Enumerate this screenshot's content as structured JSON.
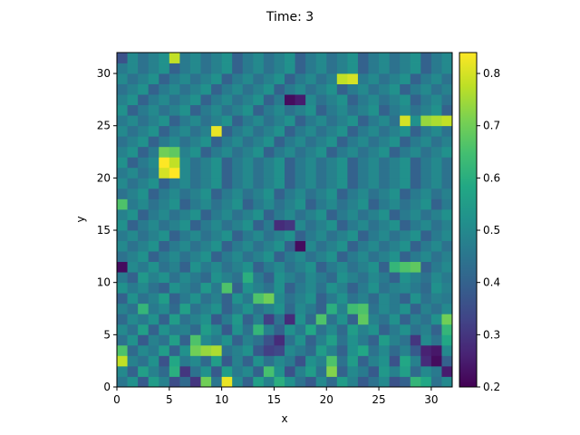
{
  "chart_data": {
    "type": "heatmap",
    "title": "Time: 3",
    "xlabel": "x",
    "ylabel": "y",
    "xlim": [
      0,
      32
    ],
    "ylim": [
      0,
      32
    ],
    "xticks": [
      0,
      5,
      10,
      15,
      20,
      25,
      30
    ],
    "yticks": [
      0,
      5,
      10,
      15,
      20,
      25,
      30
    ],
    "colormap": "viridis",
    "colorbar": {
      "min": 0.2,
      "max": 0.84,
      "ticks": [
        0.2,
        0.3,
        0.4,
        0.5,
        0.6,
        0.7,
        0.8
      ],
      "tick_labels": [
        "0.2",
        "0.3",
        "0.4",
        "0.5",
        "0.6",
        "0.7",
        "0.8"
      ],
      "position": "right"
    },
    "grid": false,
    "rows": 32,
    "cols": 32,
    "values_note_order": "rows listed from y=0 (bottom) to y=31 (top)",
    "values": [
      [
        0.45,
        0.52,
        0.38,
        0.55,
        0.48,
        0.35,
        0.42,
        0.3,
        0.7,
        0.45,
        0.82,
        0.5,
        0.4,
        0.56,
        0.48,
        0.6,
        0.52,
        0.44,
        0.38,
        0.5,
        0.42,
        0.55,
        0.48,
        0.38,
        0.44,
        0.5,
        0.36,
        0.4,
        0.62,
        0.58,
        0.44,
        0.5
      ],
      [
        0.5,
        0.4,
        0.56,
        0.48,
        0.42,
        0.6,
        0.3,
        0.44,
        0.52,
        0.38,
        0.55,
        0.46,
        0.5,
        0.4,
        0.65,
        0.52,
        0.36,
        0.48,
        0.55,
        0.44,
        0.72,
        0.4,
        0.5,
        0.46,
        0.38,
        0.54,
        0.48,
        0.56,
        0.42,
        0.5,
        0.46,
        0.25
      ],
      [
        0.78,
        0.48,
        0.44,
        0.52,
        0.36,
        0.58,
        0.46,
        0.5,
        0.42,
        0.55,
        0.38,
        0.48,
        0.4,
        0.52,
        0.44,
        0.5,
        0.46,
        0.36,
        0.52,
        0.48,
        0.66,
        0.44,
        0.55,
        0.4,
        0.48,
        0.52,
        0.36,
        0.58,
        0.48,
        0.28,
        0.22,
        0.4
      ],
      [
        0.66,
        0.42,
        0.5,
        0.46,
        0.55,
        0.4,
        0.52,
        0.7,
        0.74,
        0.76,
        0.44,
        0.48,
        0.52,
        0.38,
        0.32,
        0.34,
        0.5,
        0.46,
        0.42,
        0.55,
        0.48,
        0.4,
        0.52,
        0.58,
        0.44,
        0.5,
        0.42,
        0.48,
        0.38,
        0.26,
        0.24,
        0.5
      ],
      [
        0.44,
        0.52,
        0.38,
        0.48,
        0.44,
        0.56,
        0.4,
        0.66,
        0.5,
        0.46,
        0.52,
        0.4,
        0.48,
        0.44,
        0.36,
        0.28,
        0.44,
        0.52,
        0.4,
        0.48,
        0.56,
        0.44,
        0.52,
        0.46,
        0.4,
        0.55,
        0.48,
        0.44,
        0.3,
        0.5,
        0.44,
        0.58
      ],
      [
        0.5,
        0.44,
        0.56,
        0.4,
        0.52,
        0.46,
        0.48,
        0.42,
        0.55,
        0.5,
        0.38,
        0.52,
        0.44,
        0.62,
        0.48,
        0.4,
        0.52,
        0.46,
        0.58,
        0.44,
        0.5,
        0.42,
        0.55,
        0.48,
        0.52,
        0.4,
        0.46,
        0.52,
        0.44,
        0.48,
        0.4,
        0.62
      ],
      [
        0.42,
        0.5,
        0.46,
        0.52,
        0.4,
        0.55,
        0.44,
        0.48,
        0.52,
        0.38,
        0.46,
        0.54,
        0.4,
        0.48,
        0.32,
        0.44,
        0.28,
        0.52,
        0.42,
        0.66,
        0.44,
        0.52,
        0.4,
        0.68,
        0.48,
        0.44,
        0.52,
        0.4,
        0.48,
        0.44,
        0.52,
        0.7
      ],
      [
        0.48,
        0.44,
        0.62,
        0.46,
        0.5,
        0.42,
        0.56,
        0.44,
        0.48,
        0.52,
        0.4,
        0.46,
        0.52,
        0.44,
        0.48,
        0.52,
        0.42,
        0.5,
        0.46,
        0.4,
        0.6,
        0.48,
        0.64,
        0.66,
        0.44,
        0.5,
        0.46,
        0.52,
        0.4,
        0.48,
        0.44,
        0.5
      ],
      [
        0.4,
        0.52,
        0.44,
        0.48,
        0.55,
        0.4,
        0.46,
        0.52,
        0.44,
        0.48,
        0.4,
        0.52,
        0.46,
        0.66,
        0.7,
        0.5,
        0.44,
        0.48,
        0.52,
        0.4,
        0.46,
        0.52,
        0.44,
        0.48,
        0.42,
        0.5,
        0.46,
        0.4,
        0.52,
        0.44,
        0.48,
        0.46
      ],
      [
        0.52,
        0.46,
        0.5,
        0.44,
        0.4,
        0.52,
        0.48,
        0.44,
        0.54,
        0.46,
        0.66,
        0.4,
        0.52,
        0.48,
        0.44,
        0.52,
        0.4,
        0.46,
        0.5,
        0.44,
        0.52,
        0.48,
        0.4,
        0.46,
        0.52,
        0.44,
        0.48,
        0.5,
        0.46,
        0.42,
        0.52,
        0.48
      ],
      [
        0.46,
        0.4,
        0.54,
        0.48,
        0.52,
        0.44,
        0.5,
        0.46,
        0.42,
        0.52,
        0.48,
        0.44,
        0.6,
        0.46,
        0.4,
        0.52,
        0.48,
        0.44,
        0.5,
        0.46,
        0.42,
        0.52,
        0.48,
        0.44,
        0.5,
        0.46,
        0.4,
        0.52,
        0.48,
        0.44,
        0.5,
        0.46
      ],
      [
        0.22,
        0.5,
        0.46,
        0.52,
        0.44,
        0.48,
        0.4,
        0.52,
        0.46,
        0.5,
        0.44,
        0.48,
        0.52,
        0.4,
        0.46,
        0.5,
        0.44,
        0.48,
        0.52,
        0.4,
        0.46,
        0.5,
        0.44,
        0.48,
        0.52,
        0.4,
        0.62,
        0.66,
        0.68,
        0.4,
        0.46,
        0.5
      ],
      [
        0.44,
        0.48,
        0.52,
        0.4,
        0.46,
        0.5,
        0.44,
        0.48,
        0.52,
        0.4,
        0.46,
        0.5,
        0.44,
        0.48,
        0.52,
        0.4,
        0.46,
        0.5,
        0.44,
        0.48,
        0.52,
        0.4,
        0.46,
        0.5,
        0.44,
        0.48,
        0.52,
        0.4,
        0.46,
        0.5,
        0.44,
        0.48
      ],
      [
        0.5,
        0.44,
        0.48,
        0.52,
        0.4,
        0.46,
        0.5,
        0.44,
        0.48,
        0.52,
        0.4,
        0.46,
        0.5,
        0.44,
        0.48,
        0.52,
        0.4,
        0.22,
        0.5,
        0.44,
        0.48,
        0.52,
        0.4,
        0.46,
        0.5,
        0.44,
        0.48,
        0.52,
        0.4,
        0.46,
        0.5,
        0.44
      ],
      [
        0.46,
        0.5,
        0.44,
        0.48,
        0.52,
        0.4,
        0.46,
        0.5,
        0.44,
        0.48,
        0.52,
        0.4,
        0.46,
        0.5,
        0.44,
        0.48,
        0.52,
        0.4,
        0.46,
        0.5,
        0.44,
        0.48,
        0.52,
        0.4,
        0.46,
        0.5,
        0.44,
        0.48,
        0.52,
        0.4,
        0.46,
        0.5
      ],
      [
        0.52,
        0.4,
        0.46,
        0.5,
        0.44,
        0.48,
        0.52,
        0.4,
        0.46,
        0.5,
        0.44,
        0.48,
        0.52,
        0.4,
        0.46,
        0.28,
        0.3,
        0.5,
        0.44,
        0.48,
        0.52,
        0.4,
        0.46,
        0.5,
        0.44,
        0.48,
        0.52,
        0.4,
        0.46,
        0.5,
        0.44,
        0.48
      ],
      [
        0.48,
        0.52,
        0.4,
        0.46,
        0.5,
        0.44,
        0.48,
        0.52,
        0.4,
        0.46,
        0.5,
        0.44,
        0.48,
        0.52,
        0.4,
        0.46,
        0.5,
        0.44,
        0.48,
        0.52,
        0.4,
        0.46,
        0.5,
        0.44,
        0.48,
        0.52,
        0.4,
        0.46,
        0.5,
        0.44,
        0.48,
        0.52
      ],
      [
        0.66,
        0.46,
        0.5,
        0.44,
        0.48,
        0.52,
        0.4,
        0.46,
        0.5,
        0.44,
        0.48,
        0.52,
        0.4,
        0.46,
        0.5,
        0.44,
        0.48,
        0.52,
        0.4,
        0.46,
        0.5,
        0.44,
        0.48,
        0.52,
        0.4,
        0.46,
        0.5,
        0.44,
        0.48,
        0.52,
        0.4,
        0.46
      ],
      [
        0.44,
        0.48,
        0.52,
        0.4,
        0.46,
        0.5,
        0.44,
        0.48,
        0.52,
        0.4,
        0.46,
        0.5,
        0.44,
        0.48,
        0.52,
        0.4,
        0.46,
        0.5,
        0.44,
        0.48,
        0.52,
        0.4,
        0.46,
        0.5,
        0.44,
        0.48,
        0.52,
        0.4,
        0.46,
        0.5,
        0.44,
        0.48
      ],
      [
        0.5,
        0.44,
        0.48,
        0.52,
        0.4,
        0.46,
        0.5,
        0.44,
        0.48,
        0.52,
        0.4,
        0.46,
        0.5,
        0.44,
        0.48,
        0.52,
        0.4,
        0.46,
        0.5,
        0.44,
        0.48,
        0.52,
        0.4,
        0.46,
        0.5,
        0.44,
        0.48,
        0.52,
        0.4,
        0.46,
        0.5,
        0.44
      ],
      [
        0.46,
        0.5,
        0.44,
        0.48,
        0.8,
        0.84,
        0.5,
        0.44,
        0.48,
        0.52,
        0.4,
        0.46,
        0.5,
        0.44,
        0.48,
        0.52,
        0.4,
        0.46,
        0.5,
        0.44,
        0.48,
        0.52,
        0.4,
        0.46,
        0.5,
        0.44,
        0.48,
        0.52,
        0.4,
        0.46,
        0.5,
        0.44
      ],
      [
        0.52,
        0.4,
        0.46,
        0.5,
        0.84,
        0.78,
        0.5,
        0.44,
        0.48,
        0.52,
        0.4,
        0.46,
        0.5,
        0.44,
        0.48,
        0.52,
        0.4,
        0.46,
        0.5,
        0.44,
        0.48,
        0.52,
        0.4,
        0.46,
        0.5,
        0.44,
        0.48,
        0.52,
        0.4,
        0.46,
        0.5,
        0.44
      ],
      [
        0.48,
        0.52,
        0.4,
        0.46,
        0.7,
        0.68,
        0.48,
        0.52,
        0.4,
        0.46,
        0.5,
        0.44,
        0.48,
        0.52,
        0.4,
        0.46,
        0.5,
        0.44,
        0.48,
        0.52,
        0.4,
        0.46,
        0.5,
        0.44,
        0.48,
        0.52,
        0.4,
        0.46,
        0.5,
        0.44,
        0.48,
        0.52
      ],
      [
        0.44,
        0.48,
        0.52,
        0.4,
        0.46,
        0.5,
        0.44,
        0.48,
        0.52,
        0.4,
        0.46,
        0.5,
        0.44,
        0.48,
        0.52,
        0.4,
        0.46,
        0.5,
        0.44,
        0.48,
        0.52,
        0.4,
        0.46,
        0.5,
        0.44,
        0.48,
        0.52,
        0.4,
        0.46,
        0.5,
        0.44,
        0.48
      ],
      [
        0.5,
        0.44,
        0.48,
        0.52,
        0.4,
        0.46,
        0.5,
        0.44,
        0.48,
        0.82,
        0.4,
        0.46,
        0.5,
        0.44,
        0.48,
        0.52,
        0.4,
        0.46,
        0.5,
        0.44,
        0.48,
        0.52,
        0.4,
        0.46,
        0.5,
        0.44,
        0.48,
        0.52,
        0.4,
        0.46,
        0.5,
        0.44
      ],
      [
        0.46,
        0.5,
        0.44,
        0.48,
        0.52,
        0.4,
        0.46,
        0.5,
        0.44,
        0.48,
        0.52,
        0.4,
        0.46,
        0.5,
        0.44,
        0.48,
        0.52,
        0.4,
        0.46,
        0.5,
        0.44,
        0.48,
        0.52,
        0.4,
        0.46,
        0.5,
        0.44,
        0.8,
        0.52,
        0.74,
        0.76,
        0.78
      ],
      [
        0.52,
        0.4,
        0.46,
        0.5,
        0.44,
        0.48,
        0.52,
        0.4,
        0.46,
        0.5,
        0.44,
        0.48,
        0.52,
        0.4,
        0.46,
        0.5,
        0.44,
        0.48,
        0.52,
        0.4,
        0.46,
        0.5,
        0.44,
        0.48,
        0.52,
        0.4,
        0.46,
        0.5,
        0.44,
        0.48,
        0.52,
        0.4
      ],
      [
        0.48,
        0.52,
        0.4,
        0.46,
        0.5,
        0.44,
        0.48,
        0.52,
        0.4,
        0.46,
        0.5,
        0.44,
        0.48,
        0.52,
        0.4,
        0.46,
        0.22,
        0.25,
        0.5,
        0.44,
        0.48,
        0.52,
        0.4,
        0.46,
        0.5,
        0.44,
        0.48,
        0.52,
        0.4,
        0.46,
        0.5,
        0.44
      ],
      [
        0.44,
        0.48,
        0.52,
        0.4,
        0.46,
        0.5,
        0.44,
        0.48,
        0.52,
        0.4,
        0.46,
        0.5,
        0.44,
        0.48,
        0.52,
        0.4,
        0.46,
        0.5,
        0.44,
        0.48,
        0.52,
        0.4,
        0.46,
        0.5,
        0.44,
        0.48,
        0.52,
        0.4,
        0.46,
        0.5,
        0.44,
        0.48
      ],
      [
        0.5,
        0.44,
        0.48,
        0.52,
        0.4,
        0.46,
        0.5,
        0.44,
        0.48,
        0.52,
        0.4,
        0.46,
        0.5,
        0.44,
        0.48,
        0.52,
        0.4,
        0.46,
        0.5,
        0.44,
        0.48,
        0.78,
        0.8,
        0.46,
        0.5,
        0.44,
        0.48,
        0.52,
        0.4,
        0.46,
        0.5,
        0.44
      ],
      [
        0.46,
        0.5,
        0.44,
        0.48,
        0.52,
        0.4,
        0.46,
        0.5,
        0.44,
        0.48,
        0.52,
        0.4,
        0.46,
        0.5,
        0.44,
        0.48,
        0.52,
        0.4,
        0.46,
        0.5,
        0.44,
        0.48,
        0.52,
        0.4,
        0.46,
        0.5,
        0.44,
        0.48,
        0.52,
        0.4,
        0.46,
        0.5
      ],
      [
        0.36,
        0.5,
        0.44,
        0.48,
        0.52,
        0.78,
        0.46,
        0.5,
        0.44,
        0.48,
        0.52,
        0.4,
        0.46,
        0.5,
        0.44,
        0.48,
        0.52,
        0.4,
        0.46,
        0.5,
        0.44,
        0.48,
        0.52,
        0.4,
        0.46,
        0.5,
        0.44,
        0.48,
        0.52,
        0.4,
        0.46,
        0.5
      ]
    ]
  }
}
